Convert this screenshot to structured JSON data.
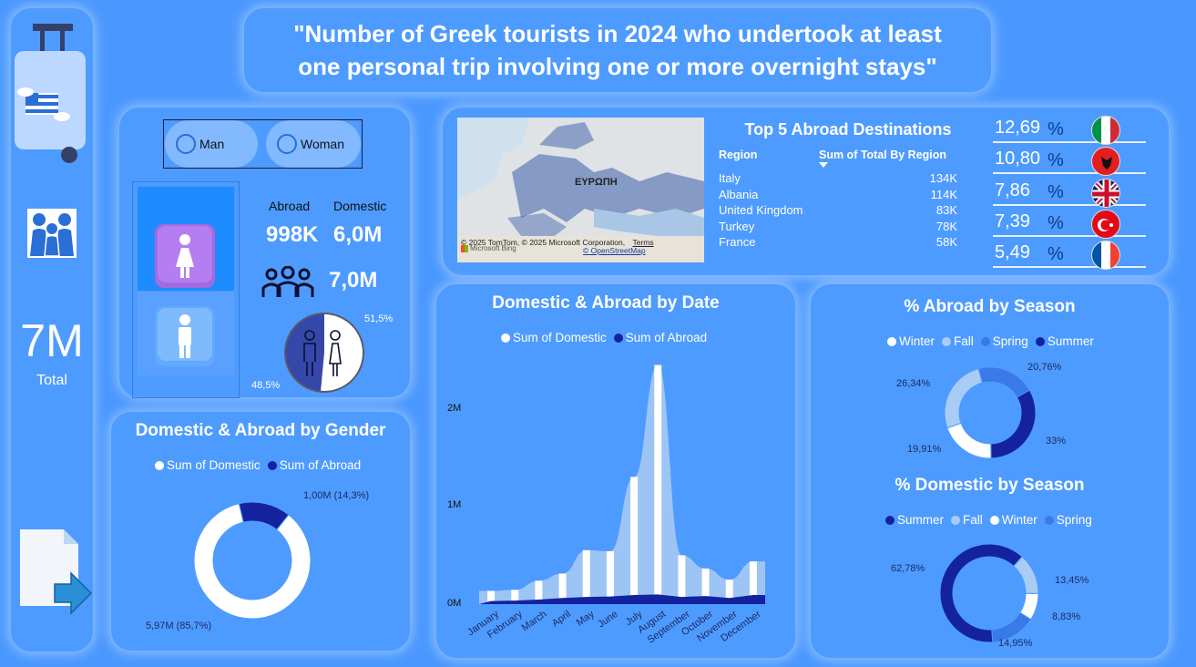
{
  "title": "\"Number of Greek tourists in 2024 who undertook at least one personal trip involving one or more overnight stays\"",
  "sidebar": {
    "total_value": "7M",
    "total_label": "Total",
    "icons": [
      "luggage-greece-icon",
      "family-icon",
      "export-icon"
    ]
  },
  "gender_card": {
    "options": [
      "Man",
      "Woman"
    ],
    "abroad_label": "Abroad",
    "domestic_label": "Domestic",
    "abroad_value": "998K",
    "domestic_value": "6,0M",
    "total_value": "7,0M",
    "pie_man_pct": "48,5%",
    "pie_woman_pct": "51,5%"
  },
  "map": {
    "region_label": "ΕΥΡΩΠΗ",
    "credits": "© 2025 TomTom, © 2025 Microsoft Corporation,",
    "terms": "Terms",
    "osm": "© OpenStreetMap",
    "bing": "Microsoft Bing"
  },
  "top5": {
    "title": "Top 5 Abroad Destinations",
    "col_region": "Region",
    "col_sum": "Sum of Total By Region",
    "rows": [
      {
        "region": "Italy",
        "value": "134K"
      },
      {
        "region": "Albania",
        "value": "114K"
      },
      {
        "region": "United Kingdom",
        "value": "83K"
      },
      {
        "region": "Turkey",
        "value": "78K"
      },
      {
        "region": "France",
        "value": "58K"
      }
    ]
  },
  "pct_list": [
    {
      "value": "12,69",
      "symbol": "%",
      "flag": "italy-flag-icon"
    },
    {
      "value": "10,80",
      "symbol": "%",
      "flag": "albania-flag-icon"
    },
    {
      "value": "7,86",
      "symbol": "%",
      "flag": "uk-flag-icon"
    },
    {
      "value": "7,39",
      "symbol": "%",
      "flag": "turkey-flag-icon"
    },
    {
      "value": "5,49",
      "symbol": "%",
      "flag": "france-flag-icon"
    }
  ],
  "colors": {
    "domestic": "#ffffff",
    "abroad": "#1522a0",
    "winter": "#ffffff",
    "fall": "#a9ccf7",
    "spring": "#3a79e8",
    "summer": "#1522a0"
  },
  "chart_data": [
    {
      "type": "pie",
      "title": "Domestic & Abroad by Gender",
      "legend": [
        "Sum of Domestic",
        "Sum of Abroad"
      ],
      "slices": [
        {
          "name": "Sum of Domestic",
          "value": 5.97,
          "label": "5,97M (85,7%)"
        },
        {
          "name": "Sum of Abroad",
          "value": 1.0,
          "label": "1,00M (14,3%)"
        }
      ]
    },
    {
      "type": "area",
      "title": "Domestic & Abroad by Date",
      "legend": [
        "Sum of Domestic",
        "Sum of Abroad"
      ],
      "categories": [
        "January",
        "February",
        "March",
        "April",
        "May",
        "June",
        "July",
        "August",
        "September",
        "October",
        "November",
        "December"
      ],
      "y_ticks": [
        "0M",
        "1M",
        "2M"
      ],
      "ylim": [
        0,
        2400000
      ],
      "series": [
        {
          "name": "Sum of Domestic",
          "values": [
            130000,
            140000,
            230000,
            300000,
            530000,
            520000,
            1250000,
            2350000,
            480000,
            350000,
            240000,
            420000
          ]
        },
        {
          "name": "Sum of Abroad",
          "values": [
            30000,
            35000,
            45000,
            60000,
            70000,
            75000,
            90000,
            95000,
            70000,
            80000,
            60000,
            90000
          ]
        }
      ]
    },
    {
      "type": "pie",
      "title": "% Abroad by Season",
      "legend": [
        "Winter",
        "Fall",
        "Spring",
        "Summer"
      ],
      "slices": [
        {
          "name": "Summer",
          "value": 33,
          "label": "33%"
        },
        {
          "name": "Winter",
          "value": 19.91,
          "label": "19,91%"
        },
        {
          "name": "Fall",
          "value": 26.34,
          "label": "26,34%"
        },
        {
          "name": "Spring",
          "value": 20.76,
          "label": "20,76%"
        }
      ]
    },
    {
      "type": "pie",
      "title": "% Domestic by Season",
      "legend": [
        "Summer",
        "Fall",
        "Winter",
        "Spring"
      ],
      "slices": [
        {
          "name": "Fall",
          "value": 13.45,
          "label": "13,45%"
        },
        {
          "name": "Winter",
          "value": 8.83,
          "label": "8,83%"
        },
        {
          "name": "Spring",
          "value": 14.95,
          "label": "14,95%"
        },
        {
          "name": "Summer",
          "value": 62.78,
          "label": "62,78%"
        }
      ]
    }
  ]
}
